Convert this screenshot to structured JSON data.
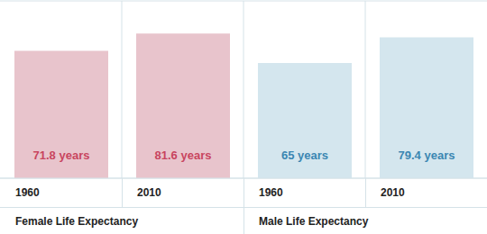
{
  "chart_data": {
    "type": "bar",
    "categories": [
      "1960",
      "2010",
      "1960",
      "2010"
    ],
    "values": [
      71.8,
      81.6,
      65,
      79.4
    ],
    "value_labels": [
      "71.8 years",
      "81.6 years",
      "65 years",
      "79.4 years"
    ],
    "colors": [
      "#e8c4cc",
      "#e8c4cc",
      "#d4e6ee",
      "#d4e6ee"
    ],
    "data_labels": true,
    "groups": [
      {
        "label": "Female Life Expectancy",
        "categories": [
          "1960",
          "2010"
        ]
      },
      {
        "label": "Male Life Expectancy",
        "categories": [
          "1960",
          "2010"
        ]
      }
    ],
    "ylim": [
      0,
      100
    ],
    "yticks": [
      0,
      20,
      40,
      60,
      80,
      100
    ],
    "grid": true,
    "tick_labels": "x"
  }
}
